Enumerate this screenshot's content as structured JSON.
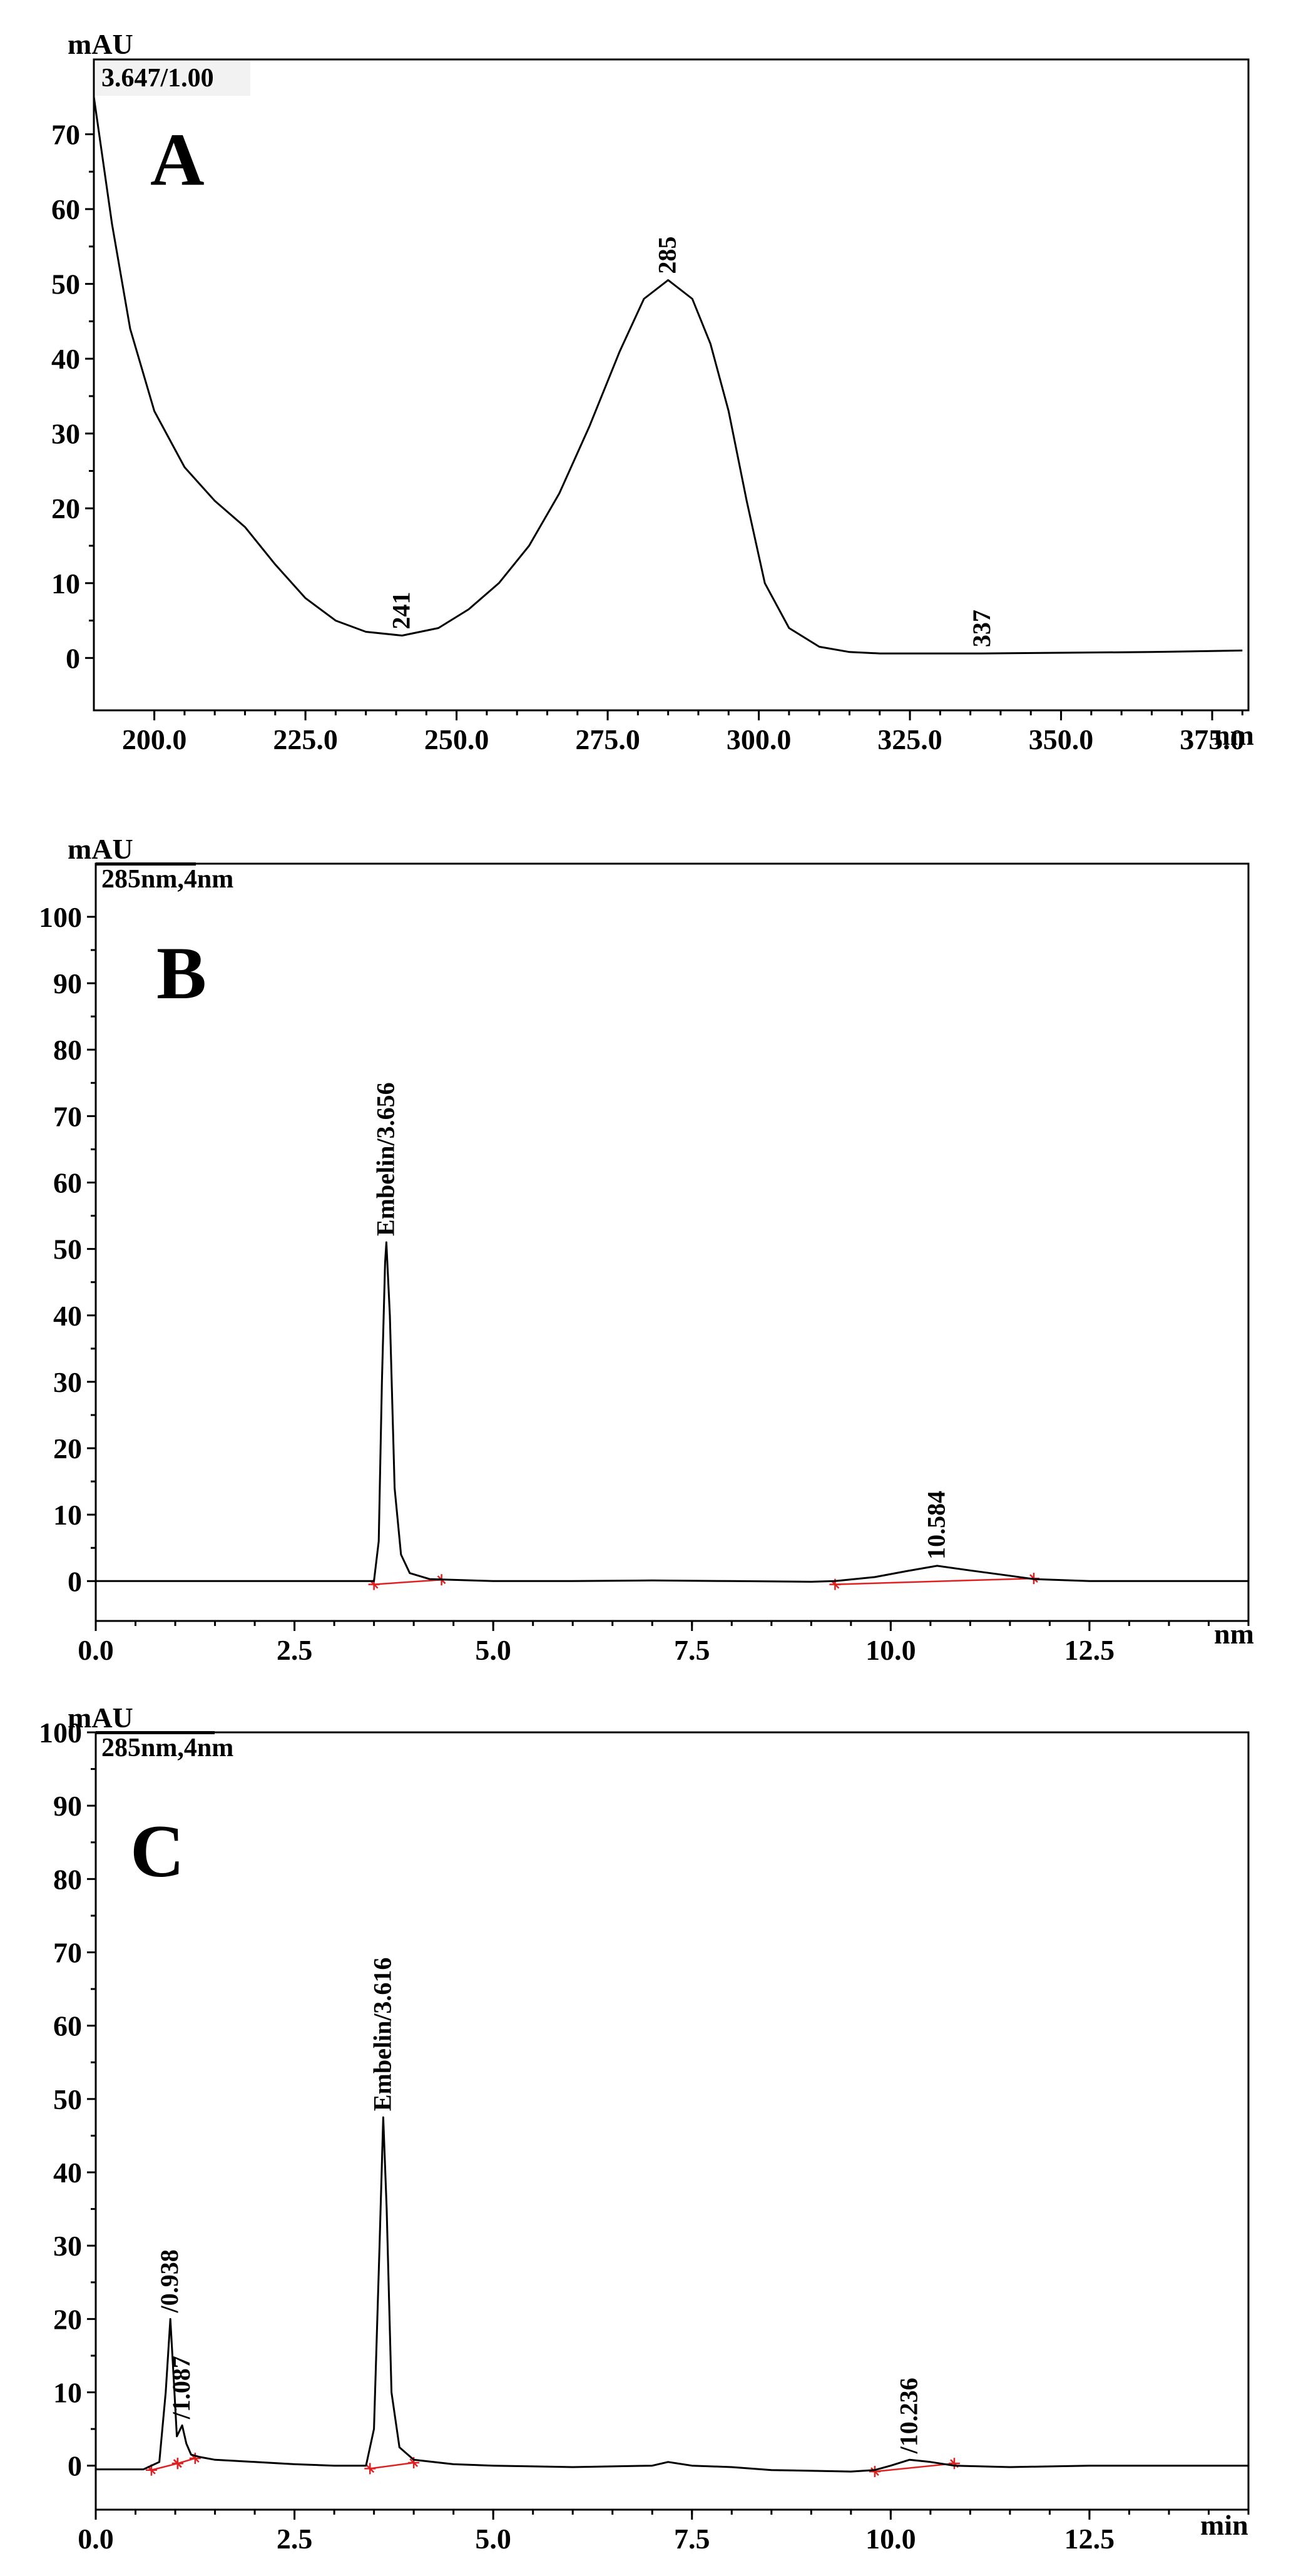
{
  "chart_data": [
    {
      "id": "A",
      "type": "line",
      "panel_letter": "A",
      "ylabel": "mAU",
      "xlabel": "nm",
      "info_label": "3.647/1.00",
      "xlim": [
        190,
        381
      ],
      "ylim": [
        -7,
        80
      ],
      "x_ticks": [
        200,
        225,
        250,
        275,
        300,
        325,
        350,
        375
      ],
      "x_tick_labels": [
        "200.0",
        "225.0",
        "250.0",
        "275.0",
        "300.0",
        "325.0",
        "350.0",
        "375.0"
      ],
      "y_ticks": [
        0,
        10,
        20,
        30,
        40,
        50,
        60,
        70
      ],
      "y_tick_labels": [
        "0",
        "10",
        "20",
        "30",
        "40",
        "50",
        "60",
        "70"
      ],
      "series": [
        {
          "x": [
            190,
            193,
            196,
            200,
            205,
            210,
            215,
            220,
            225,
            230,
            235,
            241,
            247,
            252,
            257,
            262,
            267,
            272,
            277,
            281,
            285,
            289,
            292,
            295,
            298,
            301,
            305,
            310,
            315,
            320,
            330,
            337,
            350,
            365,
            380
          ],
          "y": [
            75,
            58,
            44,
            33,
            25.5,
            21,
            17.5,
            12.5,
            8,
            5,
            3.5,
            3,
            4,
            6.5,
            10,
            15,
            22,
            31,
            41,
            48,
            50.5,
            48,
            42,
            33,
            21,
            10,
            4,
            1.5,
            0.8,
            0.6,
            0.6,
            0.6,
            0.7,
            0.8,
            1
          ]
        }
      ],
      "annotations": [
        {
          "text": "241",
          "x": 241,
          "y": 3
        },
        {
          "text": "285",
          "x": 285,
          "y": 50.5
        },
        {
          "text": "337",
          "x": 337,
          "y": 0.6
        }
      ],
      "baselines": []
    },
    {
      "id": "B",
      "type": "line",
      "panel_letter": "B",
      "ylabel": "mAU",
      "xlabel": "nm",
      "info_label": "285nm,4nm",
      "xlim": [
        0,
        14.5
      ],
      "ylim": [
        -6,
        108
      ],
      "x_ticks": [
        0,
        2.5,
        5,
        7.5,
        10,
        12.5
      ],
      "x_tick_labels": [
        "0.0",
        "2.5",
        "5.0",
        "7.5",
        "10.0",
        "12.5"
      ],
      "y_ticks": [
        0,
        10,
        20,
        30,
        40,
        50,
        60,
        70,
        80,
        90,
        100
      ],
      "y_tick_labels": [
        "0",
        "10",
        "20",
        "30",
        "40",
        "50",
        "60",
        "70",
        "80",
        "90",
        "100"
      ],
      "series": [
        {
          "x": [
            0,
            1,
            2,
            3,
            3.5,
            3.56,
            3.6,
            3.64,
            3.656,
            3.7,
            3.76,
            3.84,
            3.95,
            4.2,
            5,
            6,
            7,
            8,
            9,
            9.3,
            9.8,
            10.2,
            10.584,
            11,
            11.5,
            11.8,
            12.5,
            13.5,
            14.5
          ],
          "y": [
            0,
            0,
            0,
            0,
            0,
            6,
            30,
            48,
            51,
            40,
            14,
            4,
            1.2,
            0.3,
            0,
            0,
            0.1,
            0,
            -0.1,
            0,
            0.6,
            1.5,
            2.3,
            1.6,
            0.8,
            0.3,
            0,
            0,
            0
          ]
        }
      ],
      "annotations": [
        {
          "text": "Embelin/3.656",
          "x": 3.656,
          "y": 51
        },
        {
          "text": "10.584",
          "x": 10.584,
          "y": 2.3
        }
      ],
      "baselines": [
        {
          "x": [
            3.5,
            4.35
          ],
          "y": [
            -0.5,
            0.2
          ]
        },
        {
          "x": [
            9.3,
            11.8
          ],
          "y": [
            -0.5,
            0.4
          ]
        }
      ]
    },
    {
      "id": "C",
      "type": "line",
      "panel_letter": "C",
      "ylabel": "mAU",
      "xlabel": "min",
      "info_label": "285nm,4nm",
      "xlim": [
        0,
        14.5
      ],
      "ylim": [
        -6,
        100
      ],
      "x_ticks": [
        0,
        2.5,
        5,
        7.5,
        10,
        12.5
      ],
      "x_tick_labels": [
        "0.0",
        "2.5",
        "5.0",
        "7.5",
        "10.0",
        "12.5"
      ],
      "y_ticks": [
        0,
        10,
        20,
        30,
        40,
        50,
        60,
        70,
        80,
        90,
        100
      ],
      "y_tick_labels": [
        "0",
        "10",
        "20",
        "30",
        "40",
        "50",
        "60",
        "70",
        "80",
        "90",
        "100"
      ],
      "series": [
        {
          "x": [
            0,
            0.6,
            0.8,
            0.88,
            0.938,
            0.98,
            1.02,
            1.087,
            1.14,
            1.2,
            1.3,
            1.5,
            2,
            2.5,
            3,
            3.4,
            3.5,
            3.57,
            3.616,
            3.66,
            3.72,
            3.82,
            4,
            4.5,
            5,
            6,
            7,
            7.2,
            7.5,
            8,
            8.5,
            9,
            9.5,
            9.8,
            10,
            10.236,
            10.5,
            10.8,
            11.5,
            12.5,
            13.5,
            14.5
          ],
          "y": [
            -0.5,
            -0.5,
            0.5,
            10,
            20,
            12,
            4,
            5.5,
            3,
            1.5,
            1.2,
            0.8,
            0.5,
            0.2,
            0,
            0,
            5,
            30,
            47.5,
            35,
            10,
            2.5,
            0.8,
            0.2,
            0,
            -0.2,
            0,
            0.5,
            0,
            -0.2,
            -0.6,
            -0.7,
            -0.8,
            -0.6,
            0,
            0.8,
            0.5,
            0,
            -0.2,
            0,
            0,
            0
          ]
        }
      ],
      "annotations": [
        {
          "text": "/0.938",
          "x": 0.938,
          "y": 20
        },
        {
          "text": "/1.087",
          "x": 1.087,
          "y": 5.5
        },
        {
          "text": "Embelin/3.616",
          "x": 3.616,
          "y": 47.5
        },
        {
          "text": "/10.236",
          "x": 10.236,
          "y": 0.8
        }
      ],
      "baselines": [
        {
          "x": [
            0.7,
            1.03
          ],
          "y": [
            -0.6,
            0.3
          ]
        },
        {
          "x": [
            1.03,
            1.25
          ],
          "y": [
            0.3,
            1.0
          ]
        },
        {
          "x": [
            3.45,
            4.0
          ],
          "y": [
            -0.4,
            0.4
          ]
        },
        {
          "x": [
            9.8,
            10.8
          ],
          "y": [
            -0.8,
            0.3
          ]
        }
      ]
    }
  ]
}
